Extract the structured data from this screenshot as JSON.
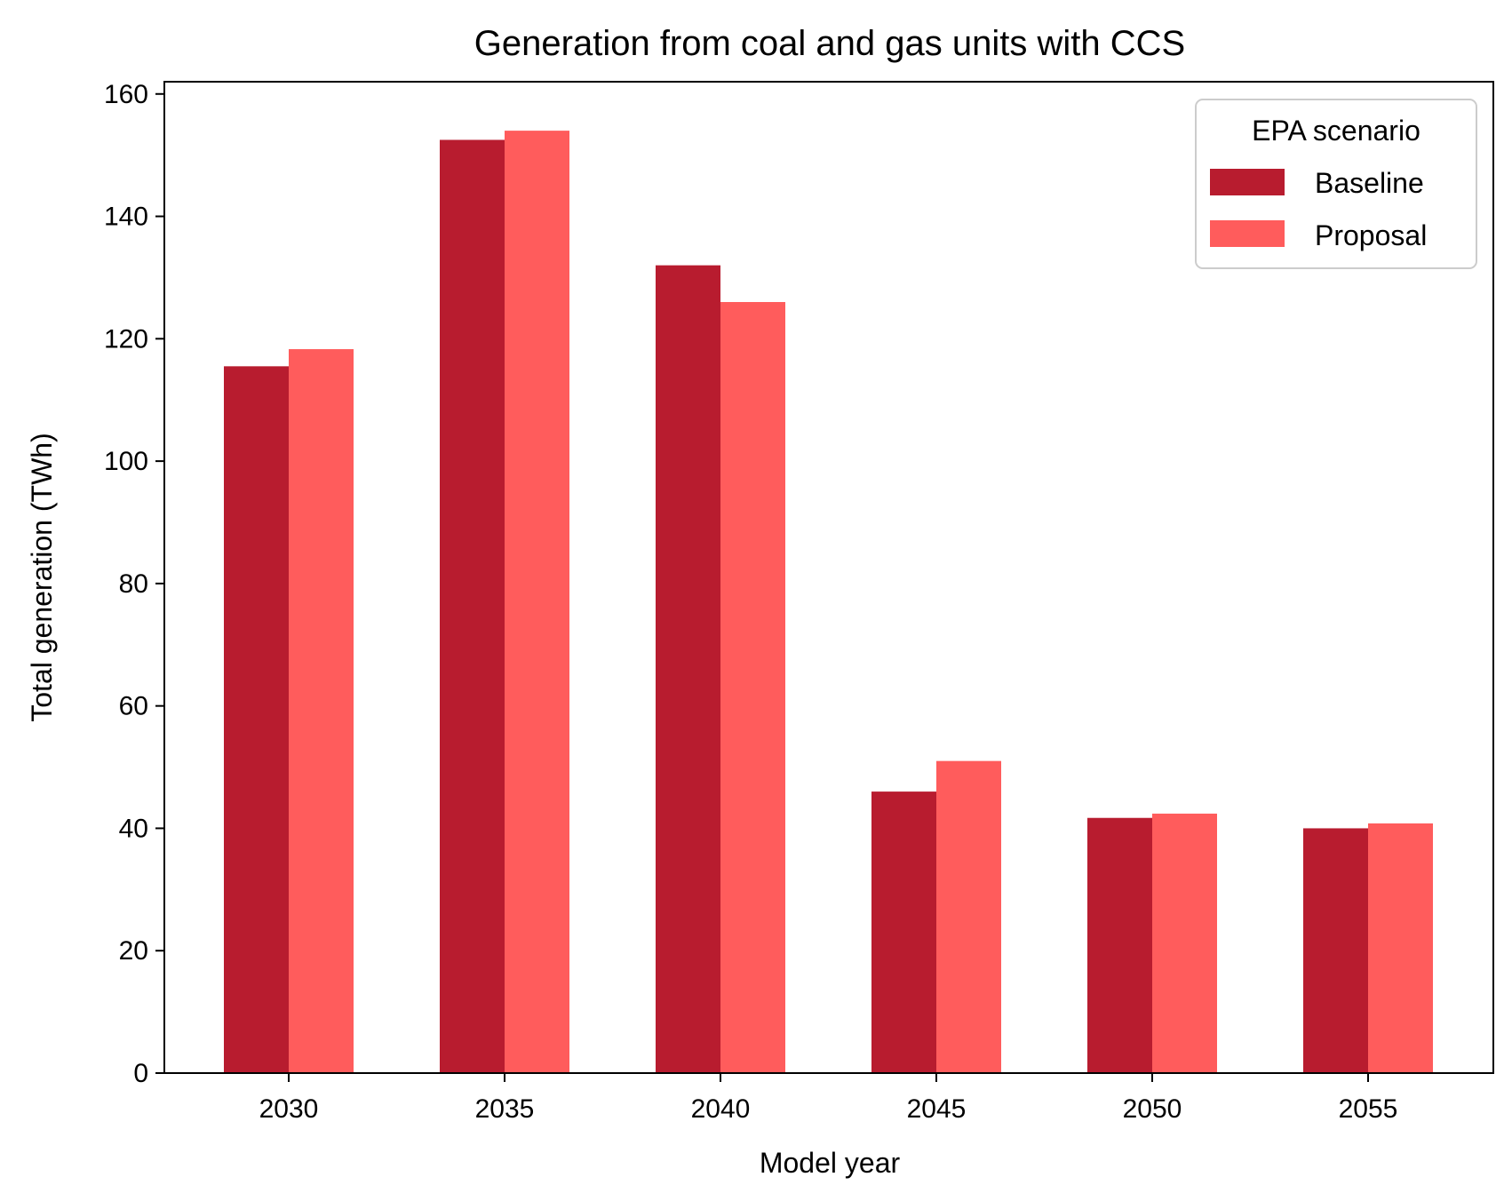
{
  "chart_data": {
    "type": "bar",
    "title": "Generation from coal and gas units with CCS",
    "xlabel": "Model year",
    "ylabel": "Total generation (TWh)",
    "categories": [
      "2030",
      "2035",
      "2040",
      "2045",
      "2050",
      "2055"
    ],
    "series": [
      {
        "name": "Baseline",
        "values": [
          115.5,
          152.5,
          132.0,
          46.0,
          41.7,
          40.0
        ],
        "color": "#b81c2f"
      },
      {
        "name": "Proposal",
        "values": [
          118.3,
          154.0,
          126.0,
          51.0,
          42.4,
          40.8
        ],
        "color": "#ff5c5c"
      }
    ],
    "ylim": [
      0,
      162
    ],
    "yticks": [
      0,
      20,
      40,
      60,
      80,
      100,
      120,
      140,
      160
    ],
    "grid": false,
    "legend": {
      "title": "EPA scenario",
      "position": "top-right"
    }
  }
}
